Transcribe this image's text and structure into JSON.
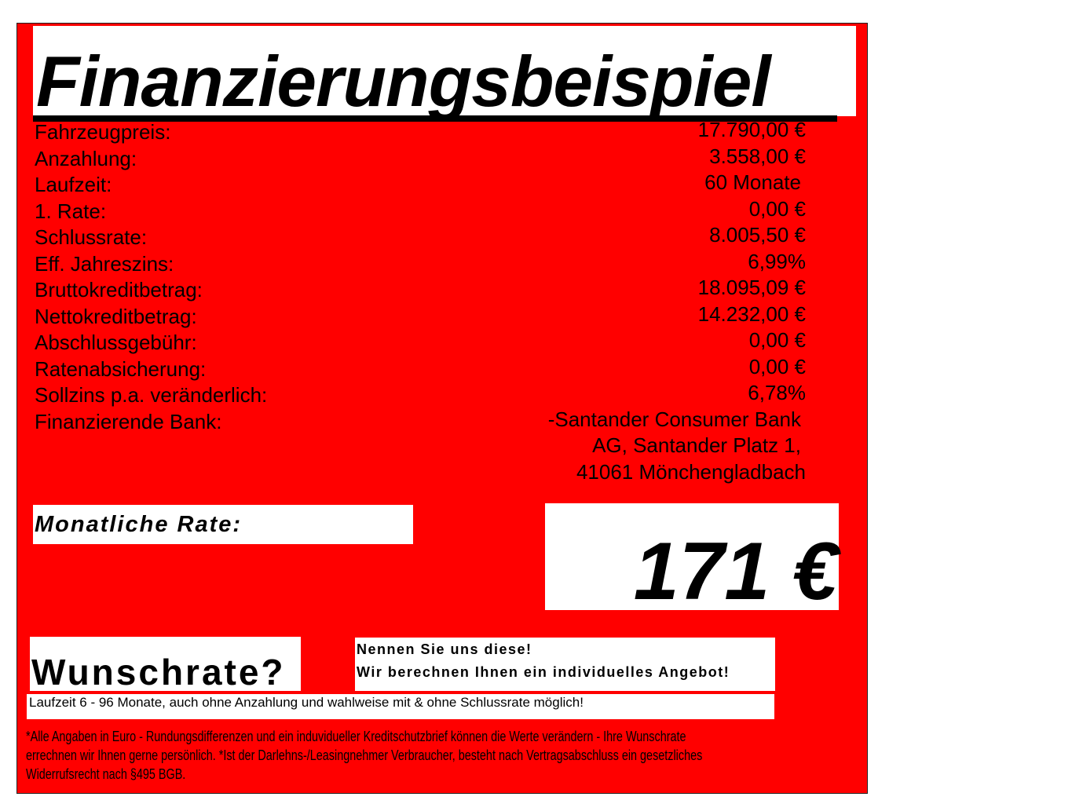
{
  "colors": {
    "background": "#ff0000",
    "box": "#ffffff",
    "text": "#000000"
  },
  "title": "Finanzierungsbeispiel",
  "rows": [
    {
      "label": "Fahrzeugpreis:",
      "value": "17.790,00 €"
    },
    {
      "label": "Anzahlung:",
      "value": "3.558,00 €"
    },
    {
      "label": "Laufzeit:",
      "value": "60 Monate"
    },
    {
      "label": "1. Rate:",
      "value": "0,00 €"
    },
    {
      "label": "Schlussrate:",
      "value": "8.005,50 €"
    },
    {
      "label": "Eff. Jahreszins:",
      "value": "6,99%"
    },
    {
      "label": "Bruttokreditbetrag:",
      "value": "18.095,09 €"
    },
    {
      "label": "Nettokreditbetrag:",
      "value": "14.232,00 €"
    },
    {
      "label": "Abschlussgebühr:",
      "value": "0,00 €"
    },
    {
      "label": "Ratenabsicherung:",
      "value": "0,00 €"
    },
    {
      "label": "Sollzins p.a. veränderlich:",
      "value": "6,78%"
    },
    {
      "label": "Finanzierende Bank:",
      "value_lines": [
        "-Santander Consumer Bank",
        "AG, Santander Platz 1,",
        "41061 Mönchengladbach"
      ]
    }
  ],
  "monthly": {
    "label": "Monatliche Rate:",
    "amount": "171 €"
  },
  "wunschrate": {
    "title": "Wunschrate?",
    "lines": [
      "Nennen Sie uns diese!",
      "Wir berechnen Ihnen ein individuelles Angebot!"
    ],
    "note": "Laufzeit 6 - 96 Monate, auch ohne Anzahlung und wahlweise mit & ohne Schlussrate möglich!"
  },
  "footnote": [
    "*Alle Angaben in Euro - Rundungsdifferenzen und ein induvidueller Kreditschutzbrief können die Werte verändern - Ihre Wunschrate",
    "errechnen wir Ihnen gerne persönlich. *Ist der Darlehns-/Leasingnehmer Verbraucher, besteht nach Vertragsabschluss ein gesetzliches",
    "Widerrufsrecht nach §495 BGB."
  ]
}
